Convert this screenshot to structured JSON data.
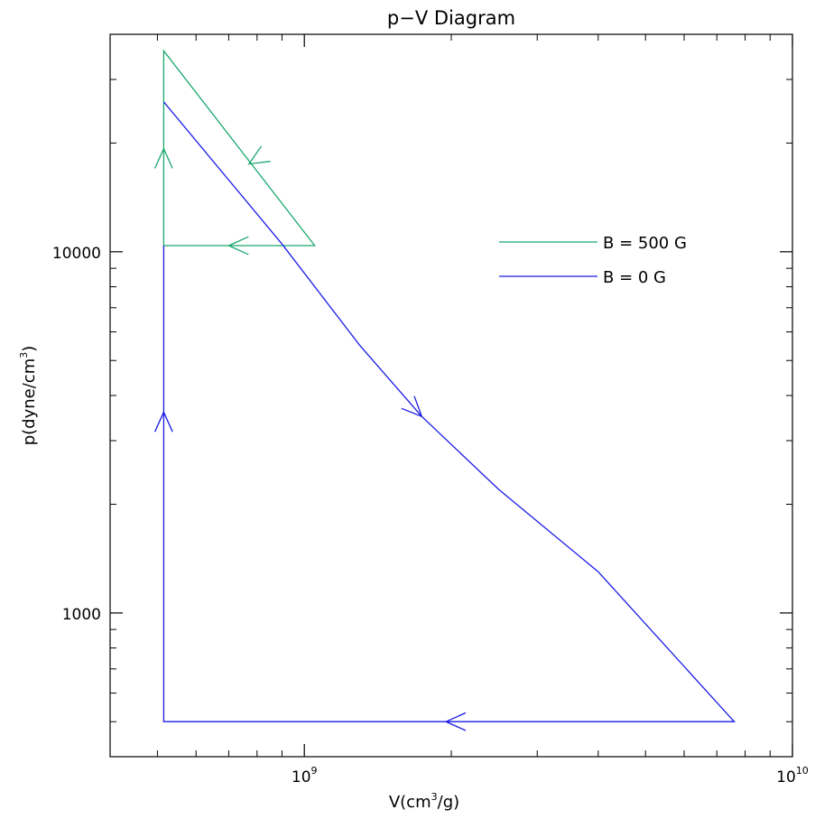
{
  "chart_data": {
    "type": "line",
    "title": "p−V Diagram",
    "xlabel": {
      "prefix": "V(cm",
      "sup": "3",
      "suffix": "/g)"
    },
    "ylabel": {
      "prefix": "p(dyne/cm",
      "sup": "3",
      "suffix": ")"
    },
    "x_scale": "log",
    "y_scale": "log",
    "xlim": [
      400000000,
      10000000000
    ],
    "ylim": [
      400,
      40000
    ],
    "x_major_ticks": [
      {
        "value": 1000000000,
        "base": "10",
        "exp": "9"
      },
      {
        "value": 10000000000,
        "base": "10",
        "exp": "10"
      }
    ],
    "x_minor_ticks": [
      500000000,
      600000000,
      700000000,
      800000000,
      900000000,
      2000000000,
      3000000000,
      4000000000,
      5000000000,
      6000000000,
      7000000000,
      8000000000,
      9000000000
    ],
    "y_major_ticks": [
      {
        "value": 1000,
        "label": "1000"
      },
      {
        "value": 10000,
        "label": "10000"
      }
    ],
    "y_minor_ticks": [
      500,
      600,
      700,
      800,
      900,
      2000,
      3000,
      4000,
      5000,
      6000,
      7000,
      8000,
      9000,
      20000,
      30000
    ],
    "legend_position": "upper-right",
    "series": [
      {
        "name": "B = 500 G",
        "color": "#1aa86e",
        "points": [
          [
            515000000,
            10400
          ],
          [
            515000000,
            36000
          ],
          [
            1050000000,
            10400
          ],
          [
            515000000,
            10400
          ]
        ],
        "arrows": [
          {
            "from": [
              515000000,
              17000
            ],
            "to": [
              515000000,
              19300
            ]
          },
          {
            "from": [
              880000000,
              19500
            ],
            "to": [
              770000000,
              17500
            ]
          },
          {
            "from": [
              880000000,
              10400
            ],
            "to": [
              700000000,
              10400
            ]
          }
        ]
      },
      {
        "name": "B = 0 G",
        "color": "#1a1ae6",
        "points": [
          [
            515000000,
            26000
          ],
          [
            900000000,
            10500
          ],
          [
            1300000000,
            5500
          ],
          [
            1740000000,
            3500
          ],
          [
            2500000000,
            2200
          ],
          [
            4000000000,
            1300
          ],
          [
            7600000000,
            500
          ],
          [
            515000000,
            500
          ],
          [
            515000000,
            10400
          ]
        ],
        "arrows": [
          {
            "from": [
              1500000000,
              4300
            ],
            "to": [
              1740000000,
              3500
            ]
          },
          {
            "from": [
              4000000000,
              500
            ],
            "to": [
              1950000000,
              500
            ]
          },
          {
            "from": [
              515000000,
              2700
            ],
            "to": [
              515000000,
              3600
            ]
          }
        ]
      }
    ]
  }
}
